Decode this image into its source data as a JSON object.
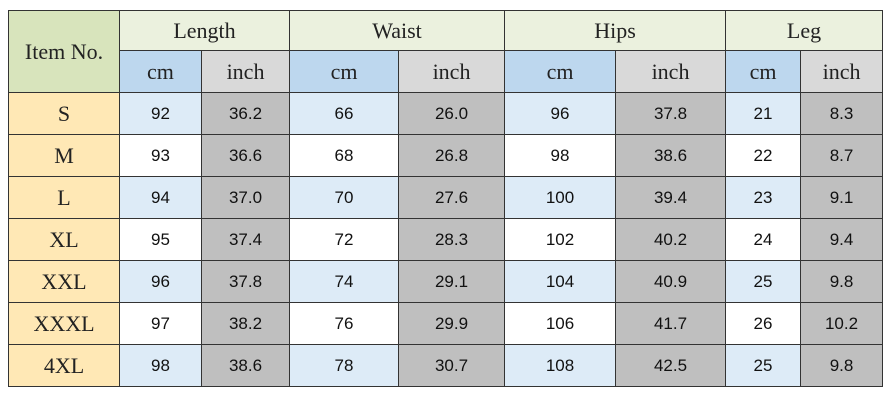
{
  "header": {
    "item": "Item No.",
    "groups": [
      "Length",
      "Waist",
      "Hips",
      "Leg"
    ],
    "units": [
      "cm",
      "inch",
      "cm",
      "inch",
      "cm",
      "inch",
      "cm",
      "inch"
    ]
  },
  "table": {
    "rows": [
      [
        "S",
        "92",
        "36.2",
        "66",
        "26.0",
        "96",
        "37.8",
        "21",
        "8.3"
      ],
      [
        "M",
        "93",
        "36.6",
        "68",
        "26.8",
        "98",
        "38.6",
        "22",
        "8.7"
      ],
      [
        "L",
        "94",
        "37.0",
        "70",
        "27.6",
        "100",
        "39.4",
        "23",
        "9.1"
      ],
      [
        "XL",
        "95",
        "37.4",
        "72",
        "28.3",
        "102",
        "40.2",
        "24",
        "9.4"
      ],
      [
        "XXL",
        "96",
        "37.8",
        "74",
        "29.1",
        "104",
        "40.9",
        "25",
        "9.8"
      ],
      [
        "XXXL",
        "97",
        "38.2",
        "76",
        "29.9",
        "106",
        "41.7",
        "26",
        "10.2"
      ],
      [
        "4XL",
        "98",
        "38.6",
        "78",
        "30.7",
        "108",
        "42.5",
        "25",
        "9.8"
      ]
    ]
  }
}
